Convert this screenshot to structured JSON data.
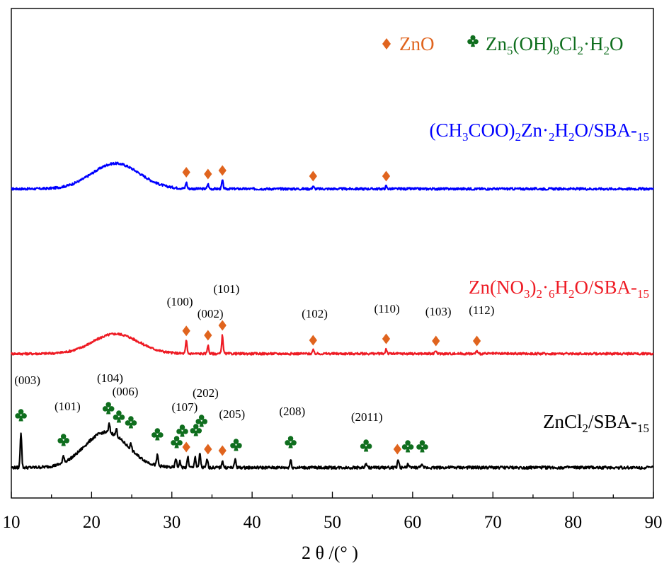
{
  "chart_data": {
    "type": "line",
    "title": "",
    "xlabel": "2 θ /(°  )",
    "ylabel": "",
    "xlim": [
      10,
      90
    ],
    "xticks": [
      10,
      20,
      30,
      40,
      50,
      60,
      70,
      80,
      90
    ],
    "grid": false,
    "legend_position": "top-right",
    "colors": {
      "zno": "#e0641e",
      "lds": "#0f6e1e",
      "acetate": "#0000ff",
      "nitrate": "#ee1b24",
      "chloride": "#000000",
      "axis": "#000000"
    },
    "legend": [
      {
        "symbol": "diamond",
        "label": "ZnO",
        "color_key": "zno"
      },
      {
        "symbol": "club",
        "label": "Zn5(OH)8Cl2·H2O",
        "color_key": "lds"
      }
    ],
    "series": [
      {
        "name": "(CH3COO)2Zn·2H2O/SBA-15",
        "color_key": "acetate",
        "hump": {
          "center": 23,
          "width": 4.2,
          "height": 36
        },
        "peaks": [
          [
            31.8,
            9
          ],
          [
            34.5,
            7
          ],
          [
            36.3,
            12
          ],
          [
            47.6,
            4
          ],
          [
            56.7,
            4
          ]
        ],
        "zno_markers": [
          31.8,
          34.5,
          36.3,
          47.6,
          56.7
        ],
        "club_markers": [],
        "hkl_labels": []
      },
      {
        "name": "Zn(NO3)2·6H2O/SBA-15",
        "color_key": "nitrate",
        "hump": {
          "center": 23,
          "width": 4.0,
          "height": 28
        },
        "peaks": [
          [
            31.8,
            18
          ],
          [
            34.5,
            12
          ],
          [
            36.3,
            26
          ],
          [
            47.6,
            5
          ],
          [
            56.7,
            7
          ],
          [
            62.9,
            4
          ],
          [
            68.0,
            4
          ]
        ],
        "zno_markers": [
          31.8,
          34.5,
          36.3,
          47.6,
          56.7,
          62.9,
          68.0
        ],
        "club_markers": [],
        "hkl_labels": [
          {
            "text": "(100)",
            "x": 31.0,
            "dy": 42
          },
          {
            "text": "(002)",
            "x": 34.8,
            "dy": 25
          },
          {
            "text": "(101)",
            "x": 36.8,
            "dy": 60
          },
          {
            "text": "(102)",
            "x": 47.8,
            "dy": 25
          },
          {
            "text": "(110)",
            "x": 56.8,
            "dy": 32
          },
          {
            "text": "(103)",
            "x": 63.2,
            "dy": 28
          },
          {
            "text": "(112)",
            "x": 68.6,
            "dy": 30
          }
        ]
      },
      {
        "name": "ZnCl2/SBA-15",
        "color_key": "chloride",
        "hump": {
          "center": 21.8,
          "width": 3.8,
          "height": 50
        },
        "peaks": [
          [
            11.2,
            50
          ],
          [
            16.5,
            10
          ],
          [
            22.2,
            12
          ],
          [
            23.1,
            10
          ],
          [
            24.9,
            8
          ],
          [
            28.2,
            15
          ],
          [
            30.5,
            13
          ],
          [
            31.0,
            9
          ],
          [
            32.0,
            15
          ],
          [
            32.9,
            16
          ],
          [
            33.5,
            20
          ],
          [
            34.4,
            12
          ],
          [
            36.3,
            10
          ],
          [
            37.9,
            12
          ],
          [
            44.8,
            11
          ],
          [
            54.2,
            6
          ],
          [
            58.2,
            12
          ],
          [
            59.4,
            5
          ],
          [
            61.1,
            5
          ]
        ],
        "zno_markers": [
          31.8,
          34.5,
          36.3,
          58.1
        ],
        "club_markers": [
          [
            11.2,
            48
          ],
          [
            16.5,
            13
          ],
          [
            22.1,
            58
          ],
          [
            23.4,
            46
          ],
          [
            24.9,
            38
          ],
          [
            28.2,
            21
          ],
          [
            30.6,
            10
          ],
          [
            31.3,
            26
          ],
          [
            33.0,
            27
          ],
          [
            33.7,
            40
          ],
          [
            38.0,
            6
          ],
          [
            44.8,
            10
          ],
          [
            54.2,
            5
          ],
          [
            59.4,
            4
          ],
          [
            61.2,
            4
          ]
        ],
        "hkl_labels": [
          {
            "text": "(003)",
            "x": 12.0,
            "dy": 92
          },
          {
            "text": "(101)",
            "x": 17.0,
            "dy": 55
          },
          {
            "text": "(104)",
            "x": 22.3,
            "dy": 95
          },
          {
            "text": "(006)",
            "x": 24.2,
            "dy": 76
          },
          {
            "text": "(107)",
            "x": 31.6,
            "dy": 54
          },
          {
            "text": "(202)",
            "x": 34.2,
            "dy": 74
          },
          {
            "text": "(205)",
            "x": 37.5,
            "dy": 44
          },
          {
            "text": "(208)",
            "x": 45.0,
            "dy": 48
          },
          {
            "text": "(2011)",
            "x": 54.3,
            "dy": 40
          }
        ]
      }
    ]
  }
}
